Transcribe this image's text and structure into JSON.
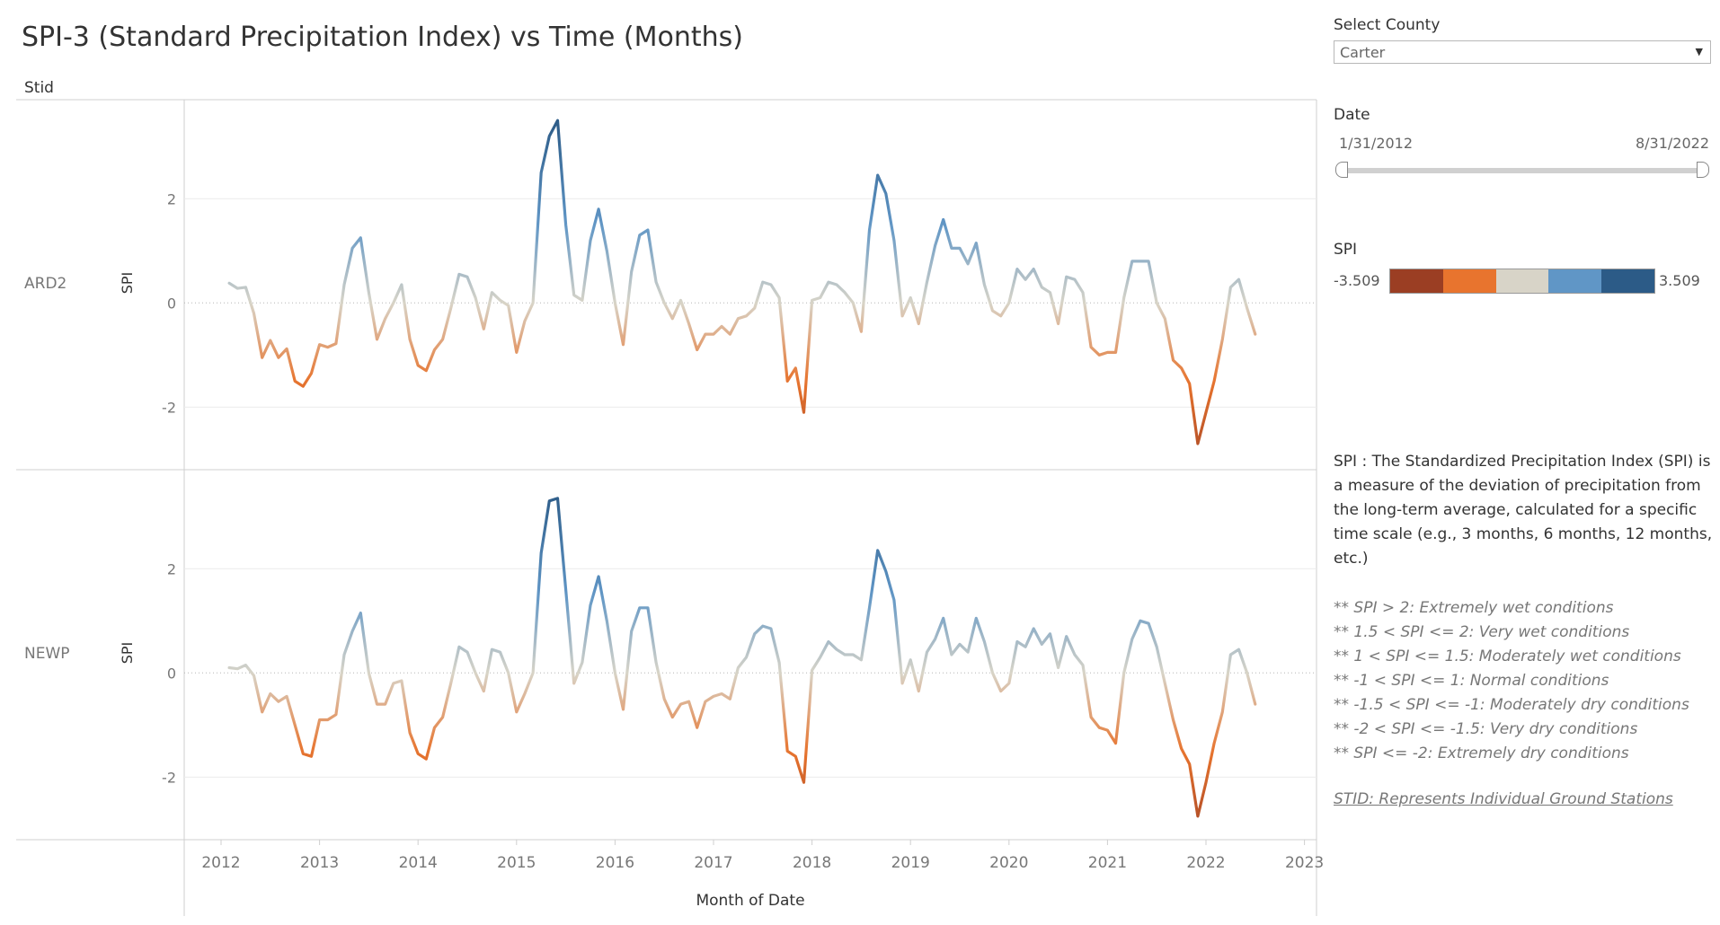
{
  "title": "SPI-3 (Standard Precipitation Index) vs Time (Months)",
  "stid_header": "Stid",
  "controls": {
    "county_label": "Select County",
    "county_value": "Carter",
    "date_label": "Date",
    "date_start": "1/31/2012",
    "date_end": "8/31/2022"
  },
  "legend": {
    "label": "SPI",
    "min": "-3.509",
    "max": "3.509",
    "colors": [
      "#9b3e23",
      "#e8742e",
      "#d8d4c8",
      "#6096c6",
      "#2c5b87"
    ]
  },
  "description": "SPI : The Standardized Precipitation Index (SPI) is a measure of the deviation of precipitation from the long-term average, calculated for a specific time scale (e.g., 3 months, 6 months, 12 months, etc.)",
  "conditions": [
    "** SPI > 2: Extremely wet conditions",
    "** 1.5 < SPI <= 2: Very wet conditions",
    "** 1 < SPI <= 1.5: Moderately wet conditions",
    "** -1 < SPI <= 1: Normal conditions",
    "** -1.5 < SPI <= -1: Moderately dry conditions",
    "** -2 < SPI <= -1.5: Very dry conditions",
    "** SPI <= -2: Extremely dry conditions"
  ],
  "stid_note": "STID: Represents Individual Ground Stations",
  "chart_data": {
    "type": "line",
    "title": "SPI-3 (Standard Precipitation Index) vs Time (Months)",
    "xlabel": "Month of Date",
    "ylabel": "SPI",
    "x_ticks": [
      "2012",
      "2013",
      "2014",
      "2015",
      "2016",
      "2017",
      "2018",
      "2019",
      "2020",
      "2021",
      "2022",
      "2023"
    ],
    "y_ticks": [
      -2,
      0,
      2
    ],
    "ylim": [
      -3.2,
      3.9
    ],
    "color_range": [
      -3.509,
      3.509
    ],
    "x_start": "2012-02",
    "x_end": "2022-08",
    "panels": [
      {
        "name": "ARD2",
        "values": [
          0.38,
          0.28,
          0.3,
          -0.2,
          -1.05,
          -0.72,
          -1.05,
          -0.88,
          -1.5,
          -1.6,
          -1.35,
          -0.8,
          -0.85,
          -0.78,
          0.35,
          1.05,
          1.25,
          0.2,
          -0.7,
          -0.3,
          0.0,
          0.35,
          -0.7,
          -1.2,
          -1.3,
          -0.9,
          -0.7,
          -0.1,
          0.55,
          0.5,
          0.1,
          -0.5,
          0.2,
          0.05,
          -0.05,
          -0.95,
          -0.35,
          0.0,
          2.5,
          3.2,
          3.5,
          1.5,
          0.15,
          0.05,
          1.2,
          1.8,
          1.0,
          0.0,
          -0.8,
          0.6,
          1.3,
          1.4,
          0.4,
          0.0,
          -0.3,
          0.05,
          -0.4,
          -0.9,
          -0.6,
          -0.6,
          -0.45,
          -0.6,
          -0.3,
          -0.25,
          -0.1,
          0.4,
          0.35,
          0.1,
          -1.5,
          -1.25,
          -2.1,
          0.05,
          0.1,
          0.4,
          0.35,
          0.2,
          0.0,
          -0.55,
          1.4,
          2.45,
          2.1,
          1.2,
          -0.25,
          0.1,
          -0.4,
          0.4,
          1.1,
          1.6,
          1.05,
          1.05,
          0.75,
          1.15,
          0.35,
          -0.15,
          -0.25,
          0.0,
          0.65,
          0.45,
          0.65,
          0.3,
          0.2,
          -0.4,
          0.5,
          0.45,
          0.2,
          -0.85,
          -1.0,
          -0.95,
          -0.95,
          0.1,
          0.8,
          0.8,
          0.8,
          0.0,
          -0.3,
          -1.1,
          -1.25,
          -1.55,
          -2.7,
          -2.1,
          -1.5,
          -0.7,
          0.3,
          0.45,
          -0.1,
          -0.6
        ]
      },
      {
        "name": "NEWP",
        "values": [
          0.1,
          0.08,
          0.15,
          -0.05,
          -0.75,
          -0.4,
          -0.55,
          -0.45,
          -1.0,
          -1.55,
          -1.6,
          -0.9,
          -0.9,
          -0.8,
          0.35,
          0.8,
          1.15,
          0.0,
          -0.6,
          -0.6,
          -0.2,
          -0.15,
          -1.15,
          -1.55,
          -1.65,
          -1.05,
          -0.85,
          -0.2,
          0.5,
          0.4,
          0.0,
          -0.35,
          0.45,
          0.4,
          0.0,
          -0.75,
          -0.4,
          0.0,
          2.3,
          3.3,
          3.35,
          1.6,
          -0.2,
          0.2,
          1.3,
          1.85,
          1.0,
          0.0,
          -0.7,
          0.8,
          1.25,
          1.25,
          0.2,
          -0.5,
          -0.85,
          -0.6,
          -0.55,
          -1.05,
          -0.55,
          -0.45,
          -0.4,
          -0.5,
          0.1,
          0.3,
          0.75,
          0.9,
          0.85,
          0.2,
          -1.5,
          -1.6,
          -2.1,
          0.05,
          0.3,
          0.6,
          0.45,
          0.35,
          0.35,
          0.25,
          1.25,
          2.35,
          1.95,
          1.4,
          -0.2,
          0.25,
          -0.35,
          0.4,
          0.65,
          1.05,
          0.35,
          0.55,
          0.4,
          1.05,
          0.6,
          0.0,
          -0.35,
          -0.2,
          0.6,
          0.5,
          0.85,
          0.55,
          0.75,
          0.1,
          0.7,
          0.35,
          0.15,
          -0.85,
          -1.05,
          -1.1,
          -1.35,
          0.0,
          0.65,
          1.0,
          0.95,
          0.5,
          -0.2,
          -0.9,
          -1.45,
          -1.75,
          -2.75,
          -2.1,
          -1.35,
          -0.75,
          0.35,
          0.45,
          0.0,
          -0.6
        ]
      }
    ]
  }
}
